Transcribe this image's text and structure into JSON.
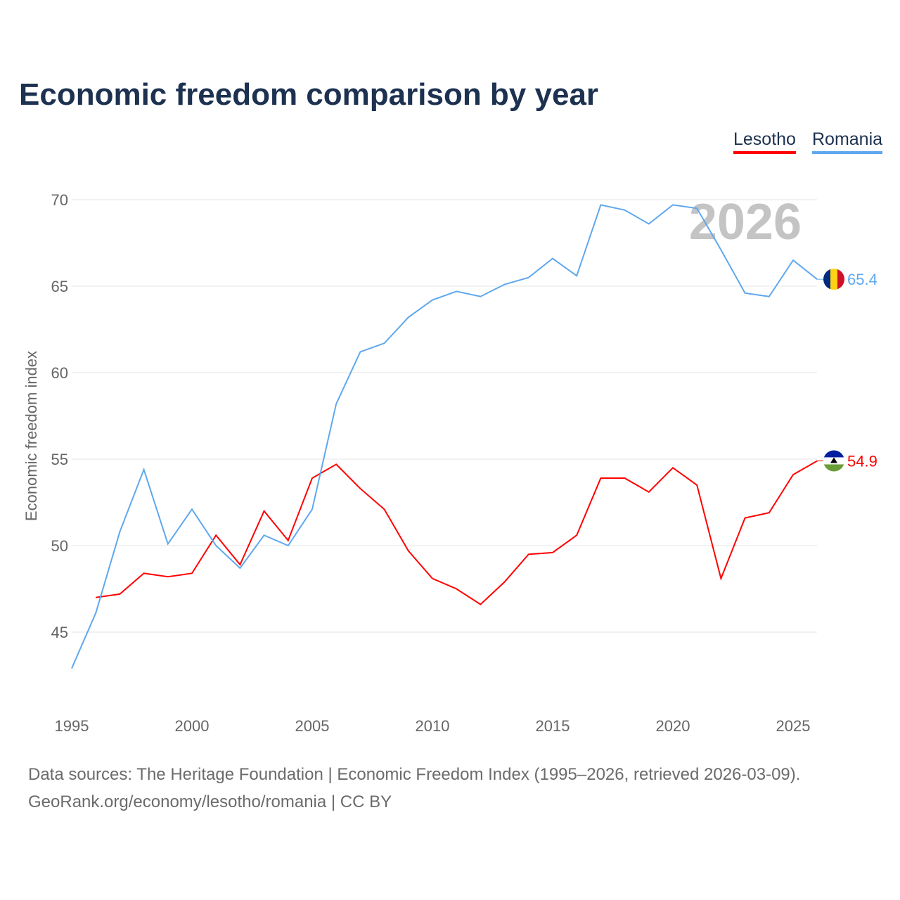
{
  "title": "Economic freedom comparison by year",
  "footer": {
    "line1": "Data sources: The Heritage Foundation | Economic Freedom Index (1995–2026, retrieved 2026-03-09).",
    "line2": "GeoRank.org/economy/lesotho/romania | CC BY"
  },
  "chart_data": {
    "type": "line",
    "title": "Economic freedom comparison by year",
    "xlabel": "",
    "ylabel": "Economic freedom index",
    "xlim": [
      1995,
      2026
    ],
    "ylim": [
      42,
      72
    ],
    "x_ticks": [
      "1995",
      "2000",
      "2005",
      "2010",
      "2015",
      "2020",
      "2025"
    ],
    "y_ticks": [
      "45",
      "50",
      "55",
      "60",
      "65",
      "70"
    ],
    "year_watermark": "2026",
    "legend_placement": "top-right",
    "series": [
      {
        "name": "Lesotho",
        "color": "#ff0000",
        "end_label": "54.9",
        "x_start": 1996,
        "values": [
          47.0,
          47.2,
          48.4,
          48.2,
          48.4,
          50.6,
          48.9,
          52.0,
          50.3,
          53.9,
          54.7,
          53.3,
          52.1,
          49.7,
          48.1,
          47.5,
          46.6,
          47.9,
          49.5,
          49.6,
          50.6,
          53.9,
          53.9,
          53.1,
          54.5,
          53.5,
          48.1,
          51.6,
          51.9,
          54.1,
          54.9
        ]
      },
      {
        "name": "Romania",
        "color": "#5fa8ee",
        "end_label": "65.4",
        "x_start": 1995,
        "values": [
          42.9,
          46.1,
          50.8,
          54.4,
          50.1,
          52.1,
          50.0,
          48.7,
          50.6,
          50.0,
          52.1,
          58.2,
          61.2,
          61.7,
          63.2,
          64.2,
          64.7,
          64.4,
          65.1,
          65.5,
          66.6,
          65.6,
          69.7,
          69.4,
          68.6,
          69.7,
          69.5,
          67.1,
          64.6,
          64.4,
          66.5,
          65.4
        ]
      }
    ]
  }
}
